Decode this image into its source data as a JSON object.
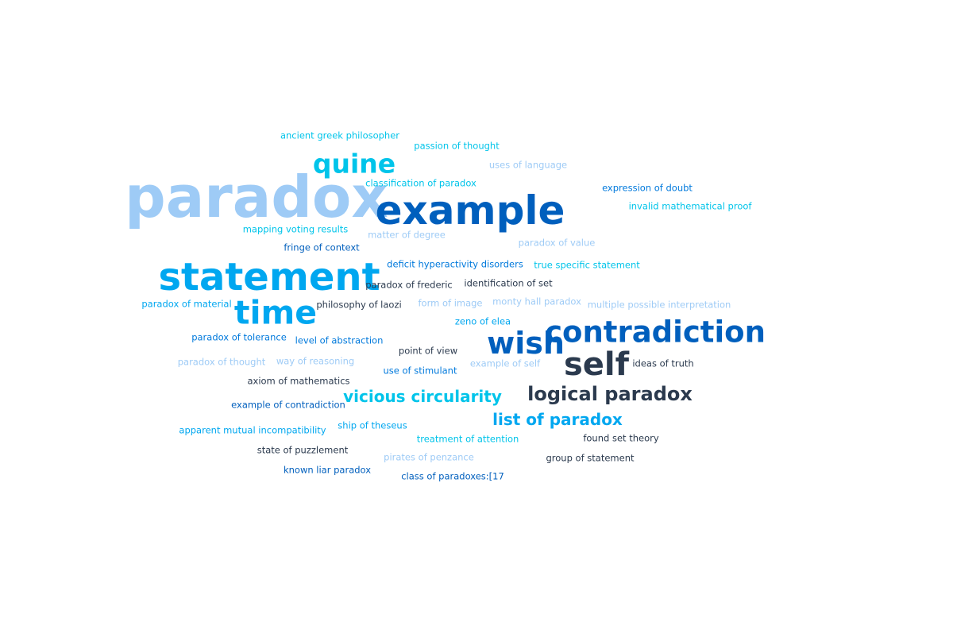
{
  "palette": {
    "light": "#9ecbf6",
    "cyan": "#00c4ea",
    "sky": "#00a7f0",
    "blue": "#0079dc",
    "navy": "#005fbd",
    "dark": "#2b3a4e"
  },
  "words": [
    {
      "text": "paradox",
      "color": "light",
      "weight": 100
    },
    {
      "text": "example",
      "color": "navy",
      "weight": 82
    },
    {
      "text": "statement",
      "color": "sky",
      "weight": 78
    },
    {
      "text": "contradiction",
      "color": "navy",
      "weight": 66
    },
    {
      "text": "time",
      "color": "sky",
      "weight": 66
    },
    {
      "text": "wish",
      "color": "navy",
      "weight": 58
    },
    {
      "text": "self",
      "color": "dark",
      "weight": 58
    },
    {
      "text": "quine",
      "color": "cyan",
      "weight": 50
    },
    {
      "text": "logical paradox",
      "color": "dark",
      "weight": 42
    },
    {
      "text": "vicious circularity",
      "color": "cyan",
      "weight": 34
    },
    {
      "text": "list of paradox",
      "color": "sky",
      "weight": 34
    },
    {
      "text": "ancient greek philosopher",
      "color": "cyan",
      "weight": 18
    },
    {
      "text": "passion of thought",
      "color": "cyan",
      "weight": 18
    },
    {
      "text": "uses of language",
      "color": "light",
      "weight": 18
    },
    {
      "text": "classification of paradox",
      "color": "cyan",
      "weight": 18
    },
    {
      "text": "expression of doubt",
      "color": "blue",
      "weight": 18
    },
    {
      "text": "invalid mathematical proof",
      "color": "cyan",
      "weight": 18
    },
    {
      "text": "mapping voting results",
      "color": "cyan",
      "weight": 18
    },
    {
      "text": "matter of degree",
      "color": "light",
      "weight": 18
    },
    {
      "text": "paradox of value",
      "color": "light",
      "weight": 18
    },
    {
      "text": "fringe of context",
      "color": "navy",
      "weight": 18
    },
    {
      "text": "deficit hyperactivity disorders",
      "color": "blue",
      "weight": 18
    },
    {
      "text": "true specific statement",
      "color": "cyan",
      "weight": 18
    },
    {
      "text": "paradox of frederic",
      "color": "dark",
      "weight": 18
    },
    {
      "text": "identification of set",
      "color": "dark",
      "weight": 18
    },
    {
      "text": "paradox of material",
      "color": "sky",
      "weight": 18
    },
    {
      "text": "philosophy of laozi",
      "color": "dark",
      "weight": 18
    },
    {
      "text": "form of image",
      "color": "light",
      "weight": 18
    },
    {
      "text": "monty hall paradox",
      "color": "light",
      "weight": 18
    },
    {
      "text": "multiple possible interpretation",
      "color": "light",
      "weight": 18
    },
    {
      "text": "zeno of elea",
      "color": "sky",
      "weight": 18
    },
    {
      "text": "paradox of tolerance",
      "color": "blue",
      "weight": 18
    },
    {
      "text": "level of abstraction",
      "color": "blue",
      "weight": 18
    },
    {
      "text": "point of view",
      "color": "dark",
      "weight": 18
    },
    {
      "text": "paradox of thought",
      "color": "light",
      "weight": 18
    },
    {
      "text": "way of reasoning",
      "color": "light",
      "weight": 18
    },
    {
      "text": "use of stimulant",
      "color": "blue",
      "weight": 18
    },
    {
      "text": "example of self",
      "color": "light",
      "weight": 18
    },
    {
      "text": "ideas of truth",
      "color": "dark",
      "weight": 18
    },
    {
      "text": "axiom of mathematics",
      "color": "dark",
      "weight": 18
    },
    {
      "text": "example of contradiction",
      "color": "navy",
      "weight": 18
    },
    {
      "text": "apparent mutual incompatibility",
      "color": "sky",
      "weight": 18
    },
    {
      "text": "ship of theseus",
      "color": "sky",
      "weight": 18
    },
    {
      "text": "treatment of attention",
      "color": "cyan",
      "weight": 18
    },
    {
      "text": "found set theory",
      "color": "dark",
      "weight": 18
    },
    {
      "text": "state of puzzlement",
      "color": "dark",
      "weight": 18
    },
    {
      "text": "pirates of penzance",
      "color": "light",
      "weight": 18
    },
    {
      "text": "group of statement",
      "color": "dark",
      "weight": 18
    },
    {
      "text": "known liar paradox",
      "color": "navy",
      "weight": 18
    },
    {
      "text": "class of paradoxes:[17",
      "color": "navy",
      "weight": 18
    }
  ]
}
